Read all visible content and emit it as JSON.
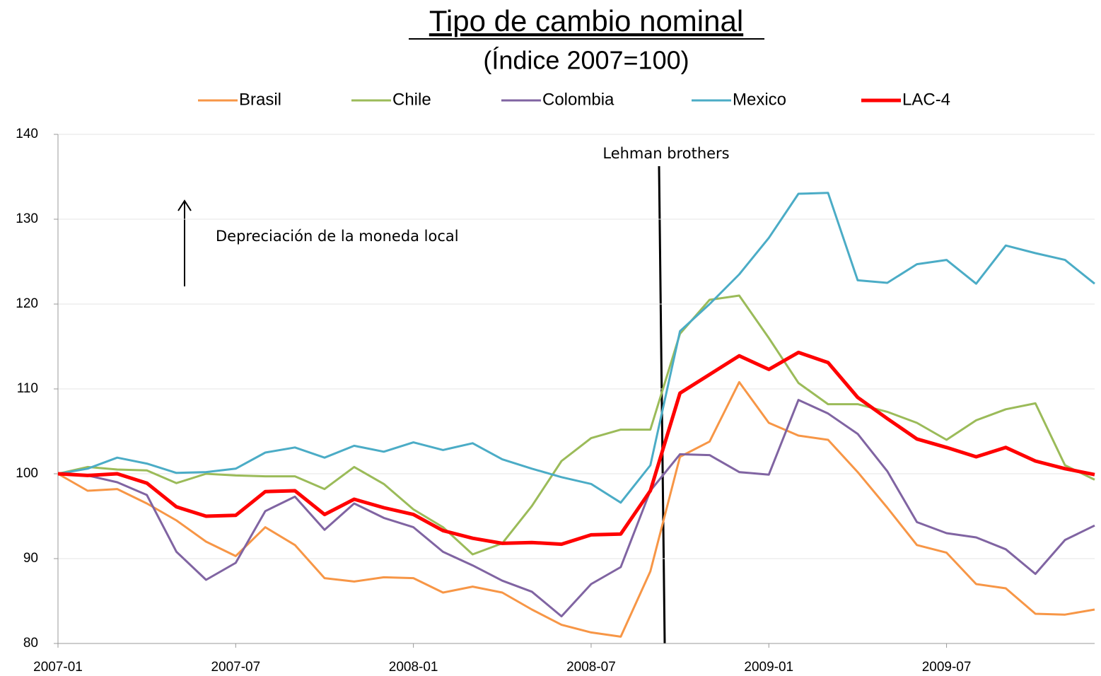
{
  "chart_data": {
    "type": "line",
    "title": "Tipo de cambio nominal",
    "subtitle": "(Índice 2007=100)",
    "annotations": [
      "Lehman brothers",
      "Depreciación de la moneda local"
    ],
    "categories": [
      "2007-01",
      null,
      null,
      null,
      null,
      null,
      "2007-07",
      null,
      null,
      null,
      null,
      null,
      "2008-01",
      null,
      null,
      null,
      null,
      null,
      "2008-07",
      null,
      null,
      null,
      null,
      null,
      "2009-01",
      null,
      null,
      null,
      null,
      null,
      "2009-07",
      null,
      null,
      null,
      null,
      null
    ],
    "series": [
      {
        "name": "Brasil",
        "color": "#f79646",
        "line_width": 3,
        "values": [
          100,
          98,
          98.2,
          96.5,
          94.5,
          92,
          90.3,
          93.7,
          91.6,
          87.7,
          87.3,
          87.8,
          87.7,
          86,
          86.7,
          86,
          84,
          82.2,
          81.3,
          80.8,
          88.5,
          102,
          103.8,
          110.8,
          106,
          104.5,
          104,
          100.2,
          96,
          91.6,
          90.7,
          87,
          86.5,
          83.5,
          83.4,
          84
        ]
      },
      {
        "name": "Chile",
        "color": "#9bbb59",
        "line_width": 3,
        "values": [
          100,
          100.8,
          100.5,
          100.4,
          98.9,
          100,
          99.8,
          99.7,
          99.7,
          98.2,
          100.8,
          98.8,
          95.8,
          93.7,
          90.5,
          91.8,
          96.2,
          101.5,
          104.2,
          105.2,
          105.2,
          116.5,
          120.5,
          121,
          116,
          110.7,
          108.2,
          108.2,
          107.3,
          106,
          104,
          106.3,
          107.6,
          108.3,
          101,
          99.3
        ]
      },
      {
        "name": "Colombia",
        "color": "#8064a2",
        "line_width": 3,
        "values": [
          100,
          99.8,
          99,
          97.5,
          90.8,
          87.5,
          89.5,
          95.6,
          97.3,
          93.4,
          96.5,
          94.8,
          93.7,
          90.8,
          89.2,
          87.4,
          86.1,
          83.2,
          87,
          89,
          98,
          102.3,
          102.2,
          100.2,
          99.9,
          108.7,
          107.1,
          104.7,
          100.3,
          94.3,
          93,
          92.5,
          91.1,
          88.2,
          92.2,
          93.9
        ]
      },
      {
        "name": "Mexico",
        "color": "#4bacc6",
        "line_width": 3,
        "values": [
          100,
          100.6,
          101.9,
          101.2,
          100.1,
          100.2,
          100.6,
          102.5,
          103.1,
          101.9,
          103.3,
          102.6,
          103.7,
          102.8,
          103.6,
          101.7,
          100.6,
          99.6,
          98.8,
          96.6,
          101,
          116.8,
          120,
          123.5,
          127.8,
          133,
          133.1,
          122.8,
          122.5,
          124.7,
          125.2,
          122.4,
          126.9,
          126,
          125.2,
          122.4
        ]
      },
      {
        "name": "LAC-4",
        "color": "#ff0000",
        "line_width": 5,
        "values": [
          100,
          99.8,
          100,
          98.9,
          96.1,
          95,
          95.1,
          97.9,
          98,
          95.2,
          97,
          96,
          95.2,
          93.3,
          92.4,
          91.8,
          91.9,
          91.7,
          92.8,
          92.9,
          98,
          109.5,
          111.7,
          113.9,
          112.3,
          114.3,
          113.1,
          109,
          106.5,
          104.1,
          103.1,
          102,
          103.1,
          101.5,
          100.6,
          99.9
        ]
      }
    ],
    "ylim": [
      80,
      140
    ],
    "yticks": [
      80,
      90,
      100,
      110,
      120,
      130,
      140
    ],
    "grid": true
  }
}
